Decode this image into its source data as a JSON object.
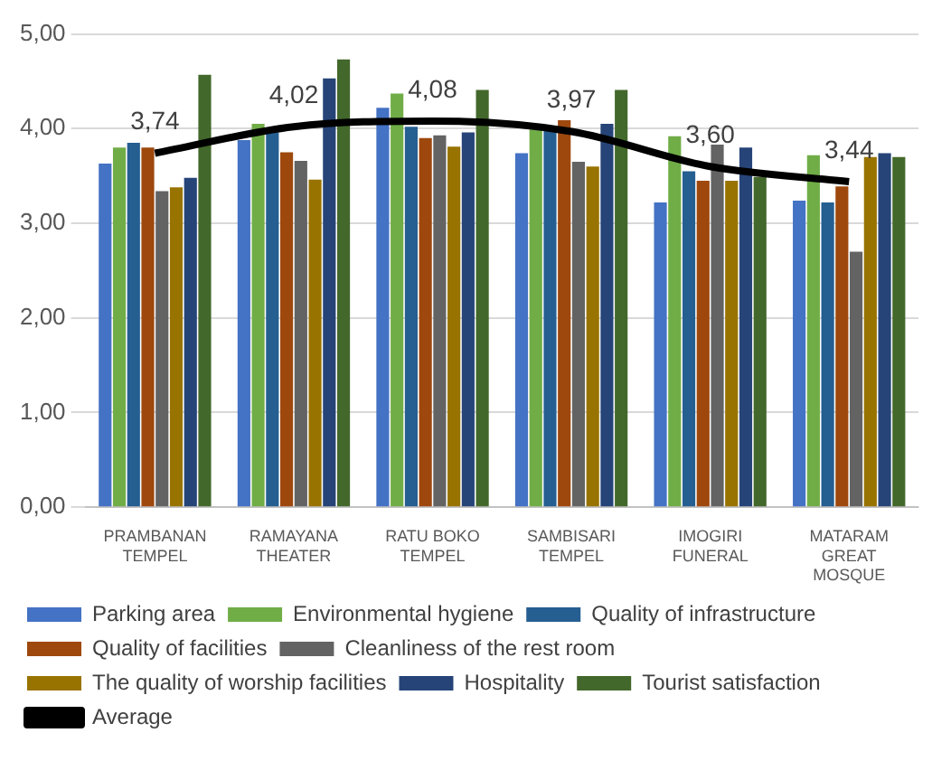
{
  "chart_data": {
    "type": "bar",
    "categories": [
      "PRAMBANAN TEMPEL",
      "RAMAYANA THEATER",
      "RATU BOKO TEMPEL",
      "SAMBISARI TEMPEL",
      "IMOGIRI FUNERAL",
      "MATARAM GREAT MOSQUE"
    ],
    "series": [
      {
        "name": "Parking area",
        "color": "#4472c4",
        "values": [
          3.63,
          3.88,
          4.22,
          3.74,
          3.22,
          3.24
        ]
      },
      {
        "name": "Environmental hygiene",
        "color": "#70ad47",
        "values": [
          3.8,
          4.05,
          4.37,
          3.99,
          3.92,
          3.72
        ]
      },
      {
        "name": "Quality of infrastructure",
        "color": "#255e91",
        "values": [
          3.85,
          3.96,
          4.02,
          4.03,
          3.55,
          3.22
        ]
      },
      {
        "name": "Quality of facilities",
        "color": "#9e480e",
        "values": [
          3.8,
          3.75,
          3.9,
          4.09,
          3.45,
          3.39
        ]
      },
      {
        "name": "Cleanliness of the rest room",
        "color": "#636363",
        "values": [
          3.34,
          3.66,
          3.93,
          3.65,
          3.83,
          2.7
        ]
      },
      {
        "name": "The quality of worship facilities",
        "color": "#997300",
        "values": [
          3.38,
          3.46,
          3.81,
          3.6,
          3.45,
          3.7
        ]
      },
      {
        "name": "Hospitality",
        "color": "#264478",
        "values": [
          3.48,
          4.53,
          3.96,
          4.05,
          3.8,
          3.74
        ]
      },
      {
        "name": "Tourist satisfaction",
        "color": "#43682b",
        "values": [
          4.57,
          4.73,
          4.41,
          4.41,
          3.49,
          3.7
        ]
      },
      {
        "name": "Average",
        "type": "line",
        "color": "#000000",
        "values": [
          3.74,
          4.02,
          4.08,
          3.97,
          3.6,
          3.44
        ],
        "value_labels": [
          "3,74",
          "4,02",
          "4,08",
          "3,97",
          "3,60",
          "3,44"
        ]
      }
    ],
    "ylim": [
      0,
      5
    ],
    "yticks": [
      {
        "value": 0,
        "label": "0,00"
      },
      {
        "value": 1,
        "label": "1,00"
      },
      {
        "value": 2,
        "label": "2,00"
      },
      {
        "value": 3,
        "label": "3,00"
      },
      {
        "value": 4,
        "label": "4,00"
      },
      {
        "value": 5,
        "label": "5,00"
      }
    ],
    "grid": "y",
    "legend": "bottom",
    "marker": "none"
  }
}
